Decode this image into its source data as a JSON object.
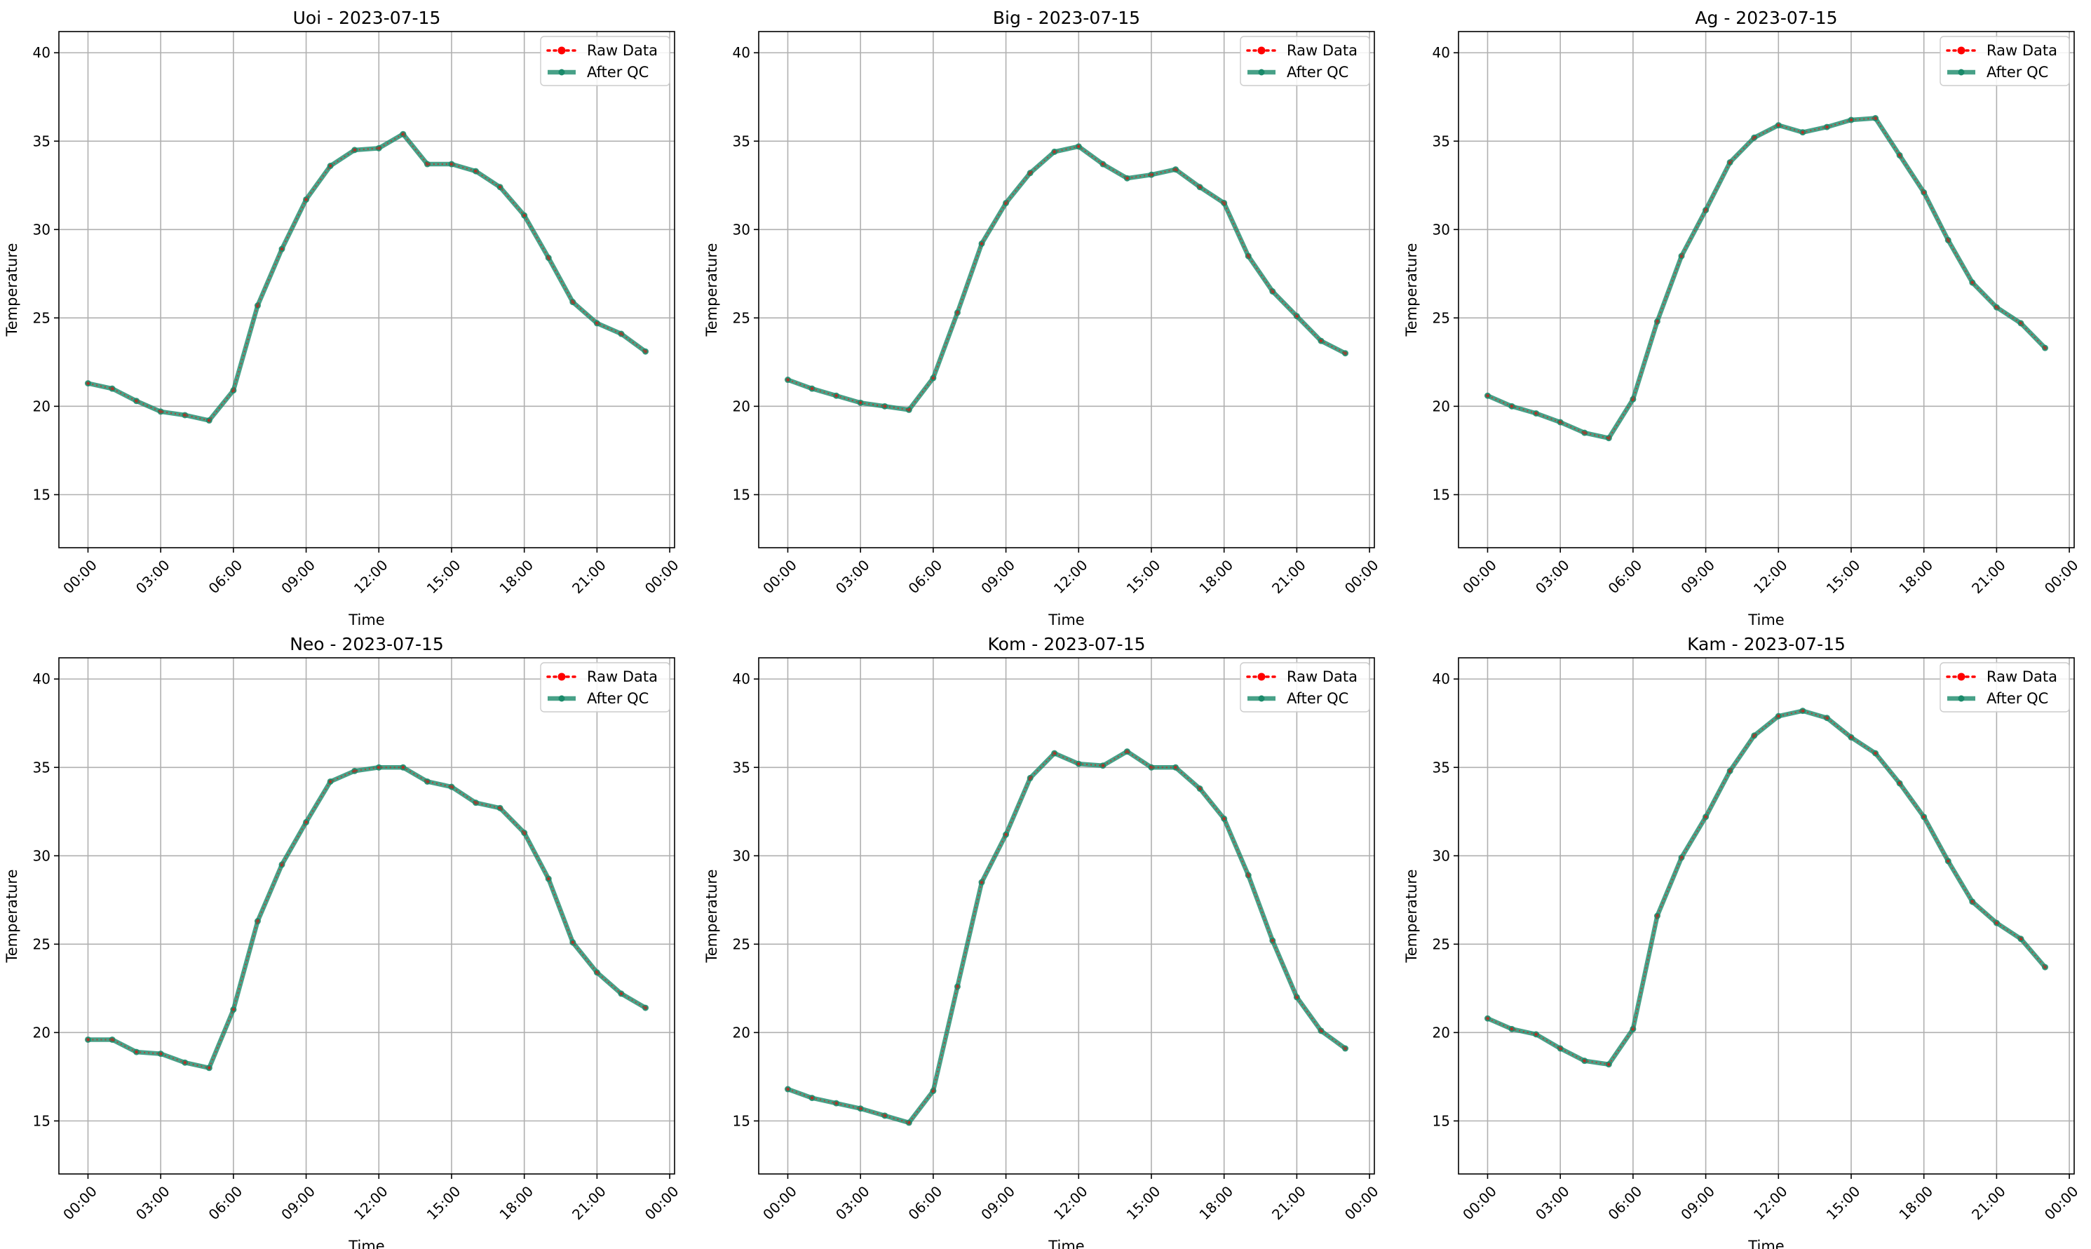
{
  "figure": {
    "background": "#ffffff",
    "grid_color": "#b0b0b0",
    "raw_color": "#ff0000",
    "qc_color": "#1a8a6a",
    "legend_labels": [
      "Raw Data",
      "After QC"
    ]
  },
  "chart_data": [
    {
      "type": "line",
      "title": "Uoi - 2023-07-15",
      "xlabel": "Time",
      "ylabel": "Temperature",
      "x_hours": [
        0,
        1,
        2,
        3,
        4,
        5,
        6,
        7,
        8,
        9,
        10,
        11,
        12,
        13,
        14,
        15,
        16,
        17,
        18,
        19,
        20,
        21,
        22,
        23
      ],
      "xticks": [
        "00:00",
        "03:00",
        "06:00",
        "09:00",
        "12:00",
        "15:00",
        "18:00",
        "21:00",
        "00:00"
      ],
      "xtick_hours": [
        0,
        3,
        6,
        9,
        12,
        15,
        18,
        21,
        24
      ],
      "xlim": [
        -1.2,
        24.2
      ],
      "yticks": [
        15,
        20,
        25,
        30,
        35,
        40
      ],
      "ylim": [
        12,
        41.2
      ],
      "grid": true,
      "legend_position": "top-right",
      "series": [
        {
          "name": "Raw Data",
          "values": [
            21.3,
            21.0,
            20.3,
            19.7,
            19.5,
            19.2,
            20.9,
            25.7,
            28.9,
            31.7,
            33.6,
            34.5,
            34.6,
            35.4,
            33.7,
            33.7,
            33.3,
            32.4,
            30.8,
            28.4,
            25.9,
            24.7,
            24.1,
            23.1
          ]
        },
        {
          "name": "After QC",
          "values": [
            21.3,
            21.0,
            20.3,
            19.7,
            19.5,
            19.2,
            20.9,
            25.7,
            28.9,
            31.7,
            33.6,
            34.5,
            34.6,
            35.4,
            33.7,
            33.7,
            33.3,
            32.4,
            30.8,
            28.4,
            25.9,
            24.7,
            24.1,
            23.1
          ]
        }
      ]
    },
    {
      "type": "line",
      "title": "Big - 2023-07-15",
      "xlabel": "Time",
      "ylabel": "Temperature",
      "x_hours": [
        0,
        1,
        2,
        3,
        4,
        5,
        6,
        7,
        8,
        9,
        10,
        11,
        12,
        13,
        14,
        15,
        16,
        17,
        18,
        19,
        20,
        21,
        22,
        23
      ],
      "xticks": [
        "00:00",
        "03:00",
        "06:00",
        "09:00",
        "12:00",
        "15:00",
        "18:00",
        "21:00",
        "00:00"
      ],
      "xtick_hours": [
        0,
        3,
        6,
        9,
        12,
        15,
        18,
        21,
        24
      ],
      "xlim": [
        -1.2,
        24.2
      ],
      "yticks": [
        15,
        20,
        25,
        30,
        35,
        40
      ],
      "ylim": [
        12,
        41.2
      ],
      "grid": true,
      "legend_position": "top-right",
      "series": [
        {
          "name": "Raw Data",
          "values": [
            21.5,
            21.0,
            20.6,
            20.2,
            20.0,
            19.8,
            21.6,
            25.3,
            29.2,
            31.5,
            33.2,
            34.4,
            34.7,
            33.7,
            32.9,
            33.1,
            33.4,
            32.4,
            31.5,
            28.5,
            26.5,
            25.1,
            23.7,
            23.0
          ]
        },
        {
          "name": "After QC",
          "values": [
            21.5,
            21.0,
            20.6,
            20.2,
            20.0,
            19.8,
            21.6,
            25.3,
            29.2,
            31.5,
            33.2,
            34.4,
            34.7,
            33.7,
            32.9,
            33.1,
            33.4,
            32.4,
            31.5,
            28.5,
            26.5,
            25.1,
            23.7,
            23.0
          ]
        }
      ]
    },
    {
      "type": "line",
      "title": "Ag - 2023-07-15",
      "xlabel": "Time",
      "ylabel": "Temperature",
      "x_hours": [
        0,
        1,
        2,
        3,
        4,
        5,
        6,
        7,
        8,
        9,
        10,
        11,
        12,
        13,
        14,
        15,
        16,
        17,
        18,
        19,
        20,
        21,
        22,
        23
      ],
      "xticks": [
        "00:00",
        "03:00",
        "06:00",
        "09:00",
        "12:00",
        "15:00",
        "18:00",
        "21:00",
        "00:00"
      ],
      "xtick_hours": [
        0,
        3,
        6,
        9,
        12,
        15,
        18,
        21,
        24
      ],
      "xlim": [
        -1.2,
        24.2
      ],
      "yticks": [
        15,
        20,
        25,
        30,
        35,
        40
      ],
      "ylim": [
        12,
        41.2
      ],
      "grid": true,
      "legend_position": "top-right",
      "series": [
        {
          "name": "Raw Data",
          "values": [
            20.6,
            20.0,
            19.6,
            19.1,
            18.5,
            18.2,
            20.4,
            24.8,
            28.5,
            31.1,
            33.8,
            35.2,
            35.9,
            35.5,
            35.8,
            36.2,
            36.3,
            34.2,
            32.1,
            29.4,
            27.0,
            25.6,
            24.7,
            23.3
          ]
        },
        {
          "name": "After QC",
          "values": [
            20.6,
            20.0,
            19.6,
            19.1,
            18.5,
            18.2,
            20.4,
            24.8,
            28.5,
            31.1,
            33.8,
            35.2,
            35.9,
            35.5,
            35.8,
            36.2,
            36.3,
            34.2,
            32.1,
            29.4,
            27.0,
            25.6,
            24.7,
            23.3
          ]
        }
      ]
    },
    {
      "type": "line",
      "title": "Neo - 2023-07-15",
      "xlabel": "Time",
      "ylabel": "Temperature",
      "x_hours": [
        0,
        1,
        2,
        3,
        4,
        5,
        6,
        7,
        8,
        9,
        10,
        11,
        12,
        13,
        14,
        15,
        16,
        17,
        18,
        19,
        20,
        21,
        22,
        23
      ],
      "xticks": [
        "00:00",
        "03:00",
        "06:00",
        "09:00",
        "12:00",
        "15:00",
        "18:00",
        "21:00",
        "00:00"
      ],
      "xtick_hours": [
        0,
        3,
        6,
        9,
        12,
        15,
        18,
        21,
        24
      ],
      "xlim": [
        -1.2,
        24.2
      ],
      "yticks": [
        15,
        20,
        25,
        30,
        35,
        40
      ],
      "ylim": [
        12,
        41.2
      ],
      "grid": true,
      "legend_position": "top-right",
      "series": [
        {
          "name": "Raw Data",
          "values": [
            19.6,
            19.6,
            18.9,
            18.8,
            18.3,
            18.0,
            21.3,
            26.3,
            29.5,
            31.9,
            34.2,
            34.8,
            35.0,
            35.0,
            34.2,
            33.9,
            33.0,
            32.7,
            31.3,
            28.7,
            25.1,
            23.4,
            22.2,
            21.4
          ]
        },
        {
          "name": "After QC",
          "values": [
            19.6,
            19.6,
            18.9,
            18.8,
            18.3,
            18.0,
            21.3,
            26.3,
            29.5,
            31.9,
            34.2,
            34.8,
            35.0,
            35.0,
            34.2,
            33.9,
            33.0,
            32.7,
            31.3,
            28.7,
            25.1,
            23.4,
            22.2,
            21.4
          ]
        }
      ]
    },
    {
      "type": "line",
      "title": "Kom - 2023-07-15",
      "xlabel": "Time",
      "ylabel": "Temperature",
      "x_hours": [
        0,
        1,
        2,
        3,
        4,
        5,
        6,
        7,
        8,
        9,
        10,
        11,
        12,
        13,
        14,
        15,
        16,
        17,
        18,
        19,
        20,
        21,
        22,
        23
      ],
      "xticks": [
        "00:00",
        "03:00",
        "06:00",
        "09:00",
        "12:00",
        "15:00",
        "18:00",
        "21:00",
        "00:00"
      ],
      "xtick_hours": [
        0,
        3,
        6,
        9,
        12,
        15,
        18,
        21,
        24
      ],
      "xlim": [
        -1.2,
        24.2
      ],
      "yticks": [
        15,
        20,
        25,
        30,
        35,
        40
      ],
      "ylim": [
        12,
        41.2
      ],
      "grid": true,
      "legend_position": "top-right",
      "series": [
        {
          "name": "Raw Data",
          "values": [
            16.8,
            16.3,
            16.0,
            15.7,
            15.3,
            14.9,
            16.7,
            22.6,
            28.5,
            31.2,
            34.4,
            35.8,
            35.2,
            35.1,
            35.9,
            35.0,
            35.0,
            33.8,
            32.1,
            28.9,
            25.2,
            22.0,
            20.1,
            19.1
          ]
        },
        {
          "name": "After QC",
          "values": [
            16.8,
            16.3,
            16.0,
            15.7,
            15.3,
            14.9,
            16.7,
            22.6,
            28.5,
            31.2,
            34.4,
            35.8,
            35.2,
            35.1,
            35.9,
            35.0,
            35.0,
            33.8,
            32.1,
            28.9,
            25.2,
            22.0,
            20.1,
            19.1
          ]
        }
      ]
    },
    {
      "type": "line",
      "title": "Kam - 2023-07-15",
      "xlabel": "Time",
      "ylabel": "Temperature",
      "x_hours": [
        0,
        1,
        2,
        3,
        4,
        5,
        6,
        7,
        8,
        9,
        10,
        11,
        12,
        13,
        14,
        15,
        16,
        17,
        18,
        19,
        20,
        21,
        22,
        23
      ],
      "xticks": [
        "00:00",
        "03:00",
        "06:00",
        "09:00",
        "12:00",
        "15:00",
        "18:00",
        "21:00",
        "00:00"
      ],
      "xtick_hours": [
        0,
        3,
        6,
        9,
        12,
        15,
        18,
        21,
        24
      ],
      "xlim": [
        -1.2,
        24.2
      ],
      "yticks": [
        15,
        20,
        25,
        30,
        35,
        40
      ],
      "ylim": [
        12,
        41.2
      ],
      "grid": true,
      "legend_position": "top-right",
      "series": [
        {
          "name": "Raw Data",
          "values": [
            20.8,
            20.2,
            19.9,
            19.1,
            18.4,
            18.2,
            20.2,
            26.6,
            29.9,
            32.2,
            34.8,
            36.8,
            37.9,
            38.2,
            37.8,
            36.7,
            35.8,
            34.1,
            32.2,
            29.7,
            27.4,
            26.2,
            25.3,
            23.7
          ]
        },
        {
          "name": "After QC",
          "values": [
            20.8,
            20.2,
            19.9,
            19.1,
            18.4,
            18.2,
            20.2,
            26.6,
            29.9,
            32.2,
            34.8,
            36.8,
            37.9,
            38.2,
            37.8,
            36.7,
            35.8,
            34.1,
            32.2,
            29.7,
            27.4,
            26.2,
            25.3,
            23.7
          ]
        }
      ]
    }
  ]
}
